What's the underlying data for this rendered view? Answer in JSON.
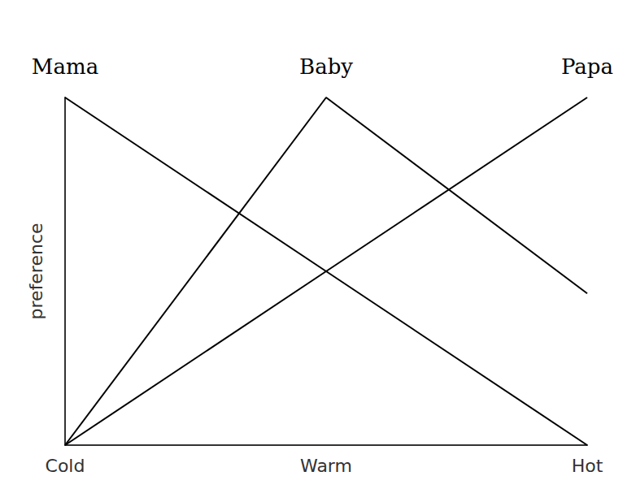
{
  "chart_data": {
    "type": "line",
    "categories": [
      "Cold",
      "Warm",
      "Hot"
    ],
    "ylabel": "preference",
    "color": "#000000",
    "series": [
      {
        "name": "Mama",
        "values": [
          1.0,
          0.45,
          -0.1
        ]
      },
      {
        "name": "Papa",
        "values": [
          -0.1,
          0.45,
          1.0
        ]
      },
      {
        "name": "Baby",
        "values": [
          -0.1,
          1.0,
          0.38
        ]
      }
    ],
    "ylim": [
      -0.1,
      1.0
    ],
    "yticks": [],
    "tick_labels": "x",
    "grid": false
  }
}
